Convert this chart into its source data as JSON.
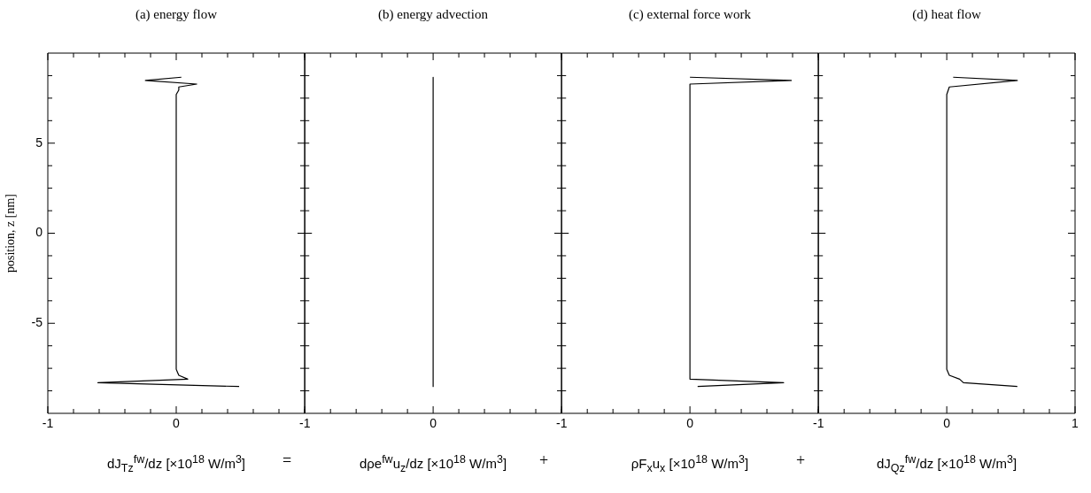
{
  "chart_data": [
    {
      "type": "line",
      "title": "(a) energy flow",
      "xlabel": "dJ$_{Tz}$$^{fw}$/dz  [×10$^{18}$ W/m$^{3}$]",
      "ylabel": "position, z [nm]",
      "annotations": [
        "="
      ],
      "marker": "none",
      "xlim": [
        -1,
        1
      ],
      "ylim": [
        -10,
        10
      ],
      "xticks": [
        -1,
        {
          "value": -0.8,
          "label": null
        },
        {
          "value": -0.6,
          "label": null
        },
        {
          "value": -0.4,
          "label": null
        },
        {
          "value": -0.2,
          "label": null
        },
        0,
        {
          "value": 0.2,
          "label": null
        },
        {
          "value": 0.4,
          "label": null
        },
        {
          "value": 0.6,
          "label": null
        },
        {
          "value": 0.8,
          "label": null
        },
        {
          "value": 1,
          "label": null
        }
      ],
      "yticks": [
        {
          "value": -8.75,
          "label": null
        },
        {
          "value": -7.5,
          "label": null
        },
        {
          "value": -6.25,
          "label": null
        },
        -5,
        {
          "value": -3.75,
          "label": null
        },
        {
          "value": -2.5,
          "label": null
        },
        {
          "value": -1.25,
          "label": null
        },
        0,
        {
          "value": 1.25,
          "label": null
        },
        {
          "value": 2.5,
          "label": null
        },
        {
          "value": 3.75,
          "label": null
        },
        5,
        {
          "value": 6.25,
          "label": null
        },
        {
          "value": 7.5,
          "label": null
        },
        {
          "value": 8.75,
          "label": null
        }
      ],
      "series": [
        {
          "color": "#000000",
          "x": [
            0.04,
            -0.24,
            0.16,
            0.02,
            0.02,
            0,
            0,
            0.02,
            0.09,
            -0.61,
            0.49
          ],
          "values": [
            8.66,
            8.48,
            8.28,
            8.12,
            7.95,
            7.7,
            -7.56,
            -7.89,
            -8.1,
            -8.3,
            -8.51
          ]
        }
      ]
    },
    {
      "type": "line",
      "title": "(b) energy advection",
      "xlabel": "dρe$^{fw}$u$_{z}$/dz  [×10$^{18}$ W/m$^{3}$]",
      "annotations": [
        "+"
      ],
      "marker": "none",
      "tick_labels": "x",
      "xlim": [
        -1,
        1
      ],
      "ylim": [
        -10,
        10
      ],
      "xticks": [
        -1,
        {
          "value": -0.8,
          "label": null
        },
        {
          "value": -0.6,
          "label": null
        },
        {
          "value": -0.4,
          "label": null
        },
        {
          "value": -0.2,
          "label": null
        },
        0,
        {
          "value": 0.2,
          "label": null
        },
        {
          "value": 0.4,
          "label": null
        },
        {
          "value": 0.6,
          "label": null
        },
        {
          "value": 0.8,
          "label": null
        },
        {
          "value": 1,
          "label": null
        }
      ],
      "yticks": [
        {
          "value": -8.75,
          "label": null
        },
        {
          "value": -7.5,
          "label": null
        },
        {
          "value": -6.25,
          "label": null
        },
        {
          "value": -5,
          "label": null
        },
        {
          "value": -3.75,
          "label": null
        },
        {
          "value": -2.5,
          "label": null
        },
        {
          "value": -1.25,
          "label": null
        },
        {
          "value": 0,
          "label": null
        },
        {
          "value": 1.25,
          "label": null
        },
        {
          "value": 2.5,
          "label": null
        },
        {
          "value": 3.75,
          "label": null
        },
        {
          "value": 5,
          "label": null
        },
        {
          "value": 6.25,
          "label": null
        },
        {
          "value": 7.5,
          "label": null
        },
        {
          "value": 8.75,
          "label": null
        }
      ],
      "series": [
        {
          "color": "#000000",
          "x": [
            0,
            0
          ],
          "values": [
            8.65,
            -8.51
          ]
        }
      ]
    },
    {
      "type": "line",
      "title": "(c) external force work",
      "xlabel": "ρF$_{x}$u$_{x}$ [×10$^{18}$ W/m$^{3}$]",
      "annotations": [
        "+"
      ],
      "marker": "none",
      "tick_labels": "x",
      "xlim": [
        -1,
        1
      ],
      "ylim": [
        -10,
        10
      ],
      "xticks": [
        -1,
        {
          "value": -0.8,
          "label": null
        },
        {
          "value": -0.6,
          "label": null
        },
        {
          "value": -0.4,
          "label": null
        },
        {
          "value": -0.2,
          "label": null
        },
        0,
        {
          "value": 0.2,
          "label": null
        },
        {
          "value": 0.4,
          "label": null
        },
        {
          "value": 0.6,
          "label": null
        },
        {
          "value": 0.8,
          "label": null
        },
        {
          "value": 1,
          "label": null
        }
      ],
      "yticks": [
        {
          "value": -8.75,
          "label": null
        },
        {
          "value": -7.5,
          "label": null
        },
        {
          "value": -6.25,
          "label": null
        },
        {
          "value": -5,
          "label": null
        },
        {
          "value": -3.75,
          "label": null
        },
        {
          "value": -2.5,
          "label": null
        },
        {
          "value": -1.25,
          "label": null
        },
        {
          "value": 0,
          "label": null
        },
        {
          "value": 1.25,
          "label": null
        },
        {
          "value": 2.5,
          "label": null
        },
        {
          "value": 3.75,
          "label": null
        },
        {
          "value": 5,
          "label": null
        },
        {
          "value": 6.25,
          "label": null
        },
        {
          "value": 7.5,
          "label": null
        },
        {
          "value": 8.75,
          "label": null
        }
      ],
      "series": [
        {
          "color": "#000000",
          "x": [
            0,
            0.79,
            0,
            0,
            0.73,
            0.06
          ],
          "values": [
            8.66,
            8.48,
            8.28,
            -8.1,
            -8.3,
            -8.51
          ]
        }
      ]
    },
    {
      "type": "line",
      "title": "(d) heat flow",
      "xlabel": "dJ$_{Qz}$$^{fw}$/dz  [×10$^{18}$ W/m$^{3}$]",
      "marker": "none",
      "tick_labels": "x",
      "xlim": [
        -1,
        1
      ],
      "ylim": [
        -10,
        10
      ],
      "xticks": [
        -1,
        {
          "value": -0.8,
          "label": null
        },
        {
          "value": -0.6,
          "label": null
        },
        {
          "value": -0.4,
          "label": null
        },
        {
          "value": -0.2,
          "label": null
        },
        0,
        {
          "value": 0.2,
          "label": null
        },
        {
          "value": 0.4,
          "label": null
        },
        {
          "value": 0.6,
          "label": null
        },
        {
          "value": 0.8,
          "label": null
        },
        1
      ],
      "yticks": [
        {
          "value": -8.75,
          "label": null
        },
        {
          "value": -7.5,
          "label": null
        },
        {
          "value": -6.25,
          "label": null
        },
        {
          "value": -5,
          "label": null
        },
        {
          "value": -3.75,
          "label": null
        },
        {
          "value": -2.5,
          "label": null
        },
        {
          "value": -1.25,
          "label": null
        },
        {
          "value": 0,
          "label": null
        },
        {
          "value": 1.25,
          "label": null
        },
        {
          "value": 2.5,
          "label": null
        },
        {
          "value": 3.75,
          "label": null
        },
        {
          "value": 5,
          "label": null
        },
        {
          "value": 6.25,
          "label": null
        },
        {
          "value": 7.5,
          "label": null
        },
        {
          "value": 8.75,
          "label": null
        }
      ],
      "series": [
        {
          "color": "#000000",
          "x": [
            0.05,
            0.55,
            0.02,
            0,
            0,
            0.02,
            0.1,
            0.13,
            0.55
          ],
          "values": [
            8.66,
            8.48,
            8.12,
            7.7,
            -7.56,
            -7.89,
            -8.1,
            -8.3,
            -8.51
          ]
        }
      ]
    }
  ]
}
